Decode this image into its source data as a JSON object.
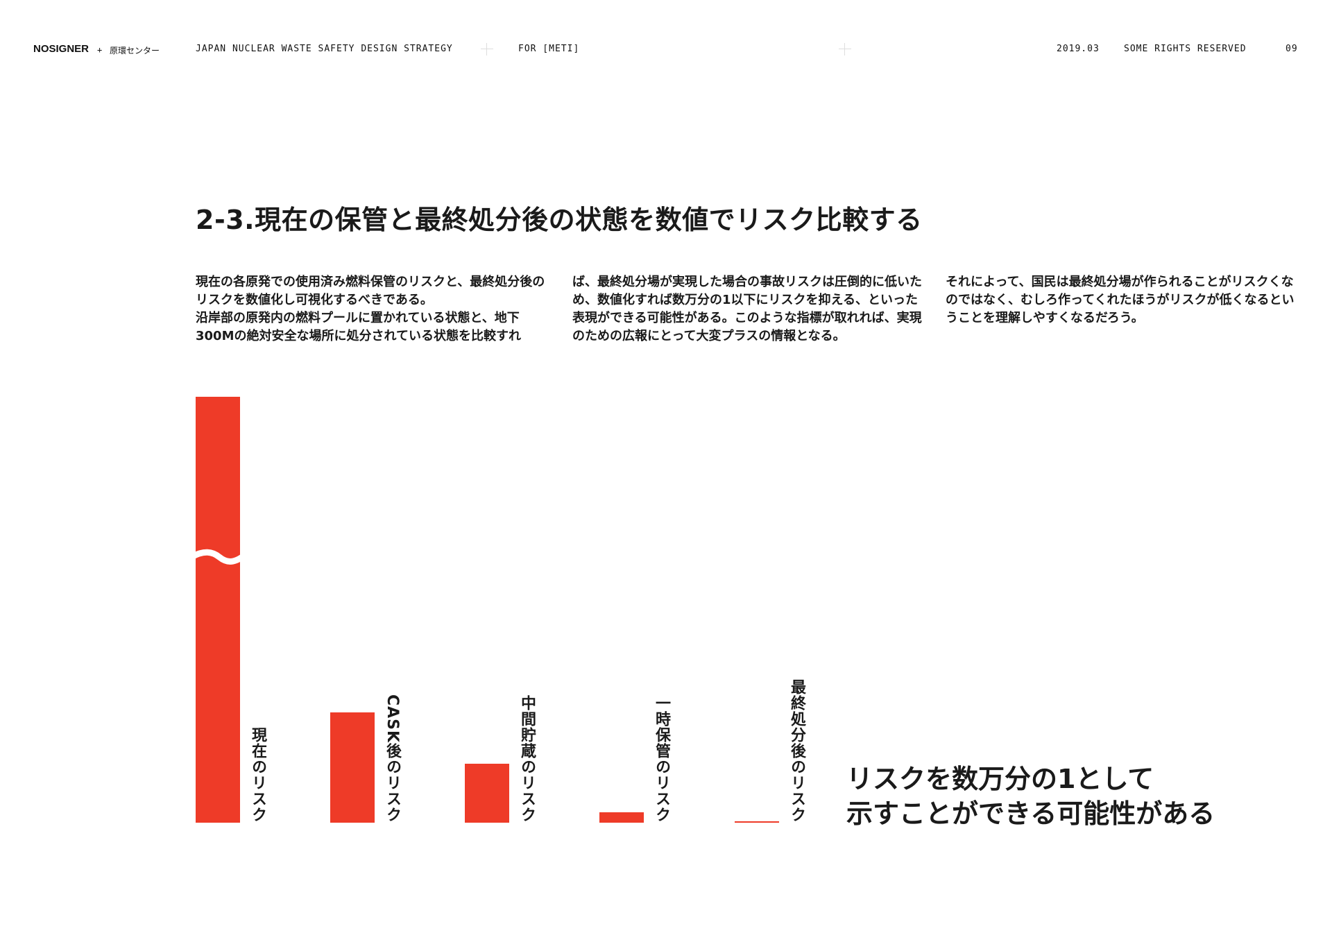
{
  "header": {
    "logo": "NOSIGNER",
    "plus": "+",
    "partner": "原環センター",
    "project": "JAPAN NUCLEAR WASTE SAFETY DESIGN STRATEGY",
    "client": "FOR [METI]",
    "date": "2019.03",
    "rights": "SOME RIGHTS RESERVED",
    "page": "09"
  },
  "title": "2-3.現在の保管と最終処分後の状態を数値でリスク比較する",
  "body": {
    "col1": [
      "現在の各原発での使用済み燃料保管のリスクと、最終処分後のリスクを数値化し可視化するべきである。",
      "沿岸部の原発内の燃料プールに置かれている状態と、地下300Mの絶対安全な場所に処分されている状態を比較すれ"
    ],
    "col2": "ば、最終処分場が実現した場合の事故リスクは圧倒的に低いため、数値化すれば数万分の1以下にリスクを抑える、といった表現ができる可能性がある。このような指標が取れれば、実現のための広報にとって大変プラスの情報となる。",
    "col3": "それによって、国民は最終処分場が作られることがリスクくなのではなく、むしろ作ってくれたほうがリスクが低くなるということを理解しやすくなるだろう。"
  },
  "chart_data": {
    "type": "bar",
    "title": "",
    "categories": [
      "現在のリスク",
      "CASK後のリスク",
      "中間貯蔵のリスク",
      "一時保管のリスク",
      "最終処分後のリスク"
    ],
    "values": [
      750,
      159,
      85,
      15,
      1
    ],
    "broken_axis_on": [
      "現在のリスク"
    ],
    "axis": "none",
    "grid": false,
    "color": "#ee3b28"
  },
  "callout": [
    "リスクを数万分の1として",
    "示すことができる可能性がある"
  ]
}
